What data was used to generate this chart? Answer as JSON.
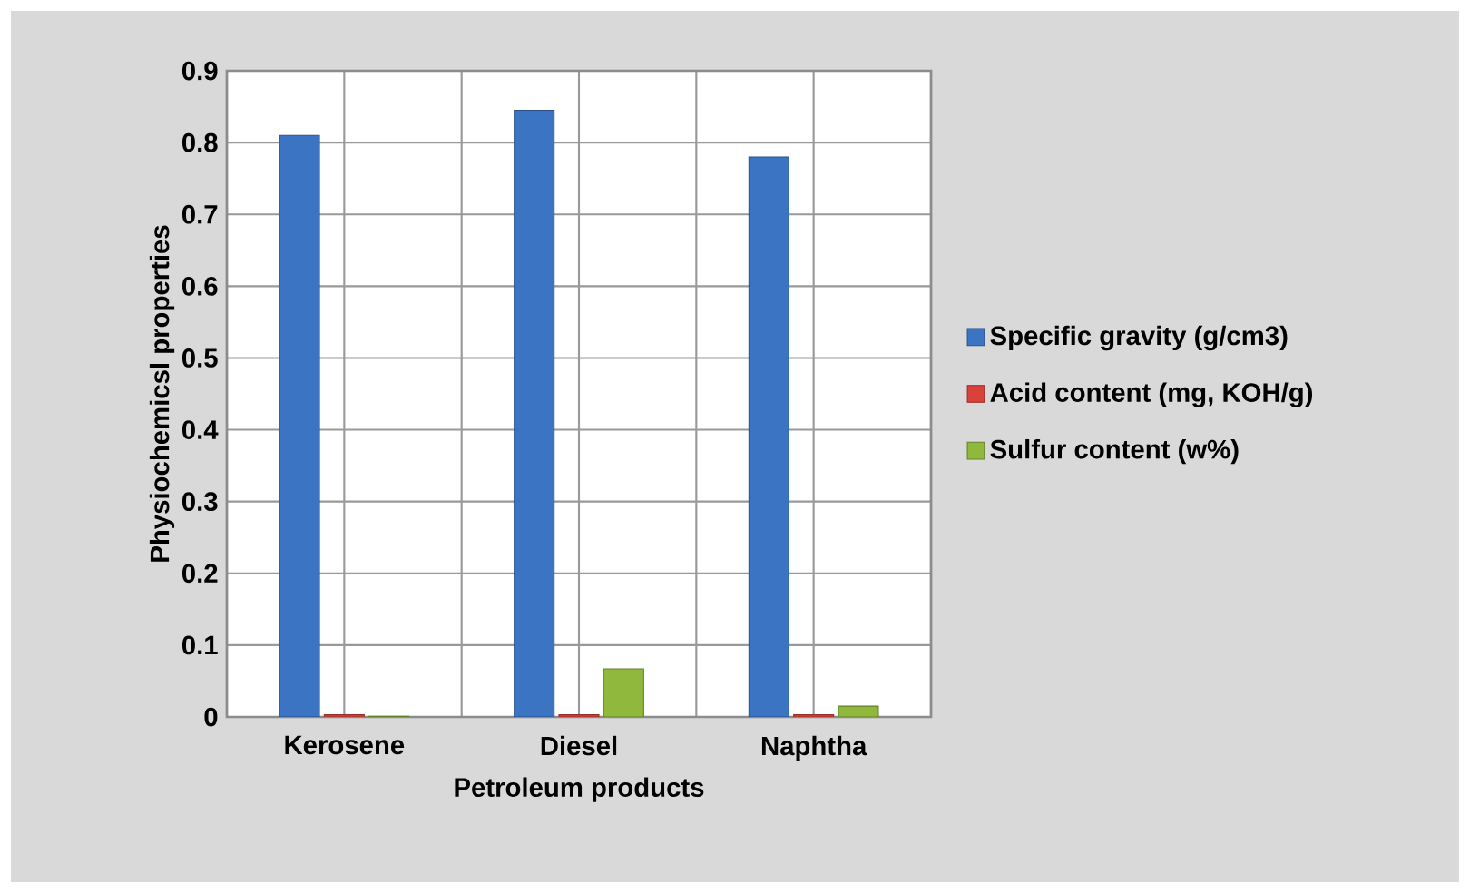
{
  "chart_data": {
    "type": "bar",
    "xlabel": "Petroleum products",
    "ylabel": "Physiochemicsl properties",
    "categories": [
      "Kerosene",
      "Diesel",
      "Naphtha"
    ],
    "series": [
      {
        "name": "Specific gravity (g/cm3)",
        "color": "#3b74c2",
        "values": [
          0.81,
          0.845,
          0.78
        ]
      },
      {
        "name": "Acid content (mg, KOH/g)",
        "color": "#d9413b",
        "values": [
          0.003,
          0.003,
          0.003
        ]
      },
      {
        "name": "Sulfur content (w%)",
        "color": "#8fb83c",
        "values": [
          0.001,
          0.067,
          0.015
        ]
      }
    ],
    "ylim": [
      0,
      0.9
    ],
    "yticks": [
      0,
      0.1,
      0.2,
      0.3,
      0.4,
      0.5,
      0.6,
      0.7,
      0.8,
      0.9
    ],
    "grid": true,
    "legend": "right"
  }
}
